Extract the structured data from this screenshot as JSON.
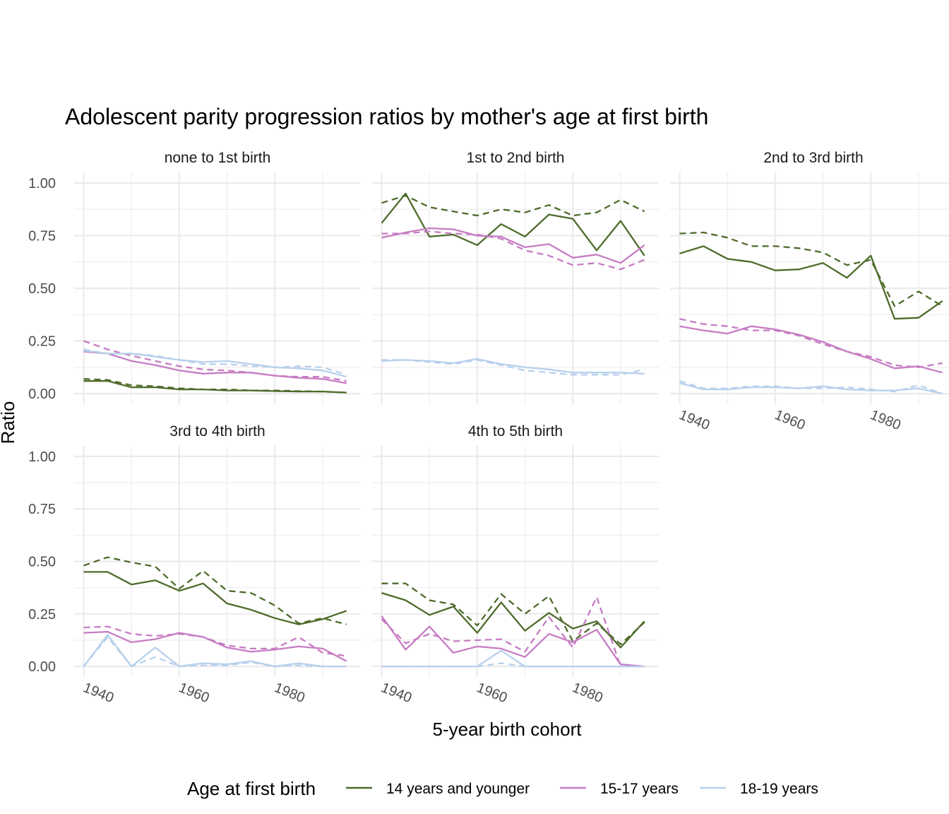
{
  "chart_data": {
    "type": "line",
    "title": "Adolescent parity progression ratios by mother's age at first birth",
    "xlabel": "5-year birth cohort",
    "ylabel": "Ratio",
    "xlim": [
      1938,
      1998
    ],
    "ylim": [
      -0.05,
      1.05
    ],
    "x_ticks": [
      "1940",
      "1960",
      "1980"
    ],
    "y_ticks": [
      "0.00",
      "0.25",
      "0.50",
      "0.75",
      "1.00"
    ],
    "legend": {
      "title": "Age at first birth",
      "position": "bottom",
      "entries": [
        "14 years and younger",
        "15-17 years",
        "18-19 years"
      ]
    },
    "colors": {
      "14 years and younger": "#4d6b2a",
      "15-17 years": "#c77cc4",
      "18-19 years": "#b8d0ec"
    },
    "x": [
      1940,
      1945,
      1950,
      1955,
      1960,
      1965,
      1970,
      1975,
      1980,
      1985,
      1990,
      1995
    ],
    "panels": [
      {
        "label": "none to 1st birth",
        "series": [
          {
            "name": "14 years and younger",
            "line": "solid",
            "values": [
              0.06,
              0.06,
              0.03,
              0.03,
              0.02,
              0.02,
              0.015,
              0.015,
              0.012,
              0.01,
              0.01,
              0.005
            ]
          },
          {
            "name": "14 years and younger",
            "line": "dashed",
            "values": [
              0.07,
              0.065,
              0.04,
              0.035,
              0.025,
              0.02,
              0.02,
              0.015,
              0.015,
              0.012,
              0.01,
              0.005
            ]
          },
          {
            "name": "15-17 years",
            "line": "solid",
            "values": [
              0.2,
              0.19,
              0.155,
              0.135,
              0.11,
              0.095,
              0.1,
              0.1,
              0.085,
              0.075,
              0.07,
              0.05
            ]
          },
          {
            "name": "15-17 years",
            "line": "dashed",
            "values": [
              0.25,
              0.21,
              0.18,
              0.155,
              0.13,
              0.115,
              0.11,
              0.1,
              0.085,
              0.08,
              0.08,
              0.06
            ]
          },
          {
            "name": "18-19 years",
            "line": "solid",
            "values": [
              0.205,
              0.19,
              0.19,
              0.175,
              0.16,
              0.15,
              0.155,
              0.14,
              0.125,
              0.12,
              0.11,
              0.08
            ]
          },
          {
            "name": "18-19 years",
            "line": "dashed",
            "values": [
              0.21,
              0.19,
              0.19,
              0.18,
              0.16,
              0.14,
              0.14,
              0.13,
              0.125,
              0.13,
              0.125,
              0.09
            ]
          }
        ]
      },
      {
        "label": "1st to 2nd birth",
        "series": [
          {
            "name": "14 years and younger",
            "line": "solid",
            "values": [
              0.81,
              0.95,
              0.745,
              0.755,
              0.705,
              0.805,
              0.745,
              0.85,
              0.83,
              0.68,
              0.82,
              0.655
            ]
          },
          {
            "name": "14 years and younger",
            "line": "dashed",
            "values": [
              0.905,
              0.94,
              0.885,
              0.865,
              0.845,
              0.875,
              0.86,
              0.895,
              0.845,
              0.86,
              0.92,
              0.865
            ]
          },
          {
            "name": "15-17 years",
            "line": "solid",
            "values": [
              0.74,
              0.765,
              0.785,
              0.78,
              0.75,
              0.745,
              0.695,
              0.71,
              0.645,
              0.66,
              0.62,
              0.705
            ]
          },
          {
            "name": "15-17 years",
            "line": "dashed",
            "values": [
              0.76,
              0.76,
              0.77,
              0.76,
              0.755,
              0.735,
              0.68,
              0.655,
              0.61,
              0.62,
              0.59,
              0.635
            ]
          },
          {
            "name": "18-19 years",
            "line": "solid",
            "values": [
              0.155,
              0.16,
              0.155,
              0.145,
              0.165,
              0.14,
              0.125,
              0.115,
              0.1,
              0.1,
              0.1,
              0.095
            ]
          },
          {
            "name": "18-19 years",
            "line": "dashed",
            "values": [
              0.16,
              0.16,
              0.15,
              0.14,
              0.16,
              0.135,
              0.11,
              0.1,
              0.09,
              0.09,
              0.09,
              0.115
            ]
          }
        ]
      },
      {
        "label": "2nd to 3rd birth",
        "series": [
          {
            "name": "14 years and younger",
            "line": "solid",
            "values": [
              0.665,
              0.7,
              0.64,
              0.625,
              0.585,
              0.59,
              0.62,
              0.55,
              0.655,
              0.355,
              0.36,
              0.44
            ]
          },
          {
            "name": "14 years and younger",
            "line": "dashed",
            "values": [
              0.76,
              0.765,
              0.74,
              0.7,
              0.7,
              0.69,
              0.67,
              0.61,
              0.635,
              0.415,
              0.485,
              0.415
            ]
          },
          {
            "name": "15-17 years",
            "line": "solid",
            "values": [
              0.32,
              0.3,
              0.285,
              0.32,
              0.305,
              0.28,
              0.245,
              0.2,
              0.165,
              0.12,
              0.13,
              0.1
            ]
          },
          {
            "name": "15-17 years",
            "line": "dashed",
            "values": [
              0.355,
              0.33,
              0.32,
              0.3,
              0.3,
              0.275,
              0.235,
              0.2,
              0.175,
              0.135,
              0.125,
              0.145
            ]
          },
          {
            "name": "18-19 years",
            "line": "solid",
            "values": [
              0.05,
              0.02,
              0.02,
              0.03,
              0.03,
              0.025,
              0.035,
              0.02,
              0.015,
              0.015,
              0.025,
              0.0
            ]
          },
          {
            "name": "18-19 years",
            "line": "dashed",
            "values": [
              0.06,
              0.025,
              0.025,
              0.035,
              0.035,
              0.025,
              0.025,
              0.03,
              0.02,
              0.01,
              0.04,
              0.0
            ]
          }
        ]
      },
      {
        "label": "3rd to 4th birth",
        "series": [
          {
            "name": "14 years and younger",
            "line": "solid",
            "values": [
              0.45,
              0.45,
              0.39,
              0.41,
              0.36,
              0.395,
              0.3,
              0.27,
              0.23,
              0.2,
              0.225,
              0.265
            ]
          },
          {
            "name": "14 years and younger",
            "line": "dashed",
            "values": [
              0.48,
              0.52,
              0.495,
              0.475,
              0.37,
              0.455,
              0.36,
              0.35,
              0.29,
              0.205,
              0.23,
              0.2
            ]
          },
          {
            "name": "15-17 years",
            "line": "solid",
            "values": [
              0.16,
              0.165,
              0.115,
              0.13,
              0.16,
              0.14,
              0.09,
              0.07,
              0.08,
              0.095,
              0.085,
              0.025
            ]
          },
          {
            "name": "15-17 years",
            "line": "dashed",
            "values": [
              0.185,
              0.19,
              0.155,
              0.145,
              0.155,
              0.14,
              0.1,
              0.085,
              0.085,
              0.14,
              0.065,
              0.05
            ]
          },
          {
            "name": "18-19 years",
            "line": "solid",
            "values": [
              0.0,
              0.15,
              0.0,
              0.09,
              0.0,
              0.015,
              0.01,
              0.025,
              0.0,
              0.015,
              0.0,
              0.0
            ]
          },
          {
            "name": "18-19 years",
            "line": "dashed",
            "values": [
              0.0,
              0.14,
              0.0,
              0.045,
              0.0,
              0.005,
              0.005,
              0.02,
              0.0,
              0.005,
              0.0,
              0.0
            ]
          }
        ]
      },
      {
        "label": "4th to 5th birth",
        "series": [
          {
            "name": "14 years and younger",
            "line": "solid",
            "values": [
              0.35,
              0.315,
              0.245,
              0.285,
              0.16,
              0.305,
              0.17,
              0.255,
              0.18,
              0.215,
              0.09,
              0.215
            ]
          },
          {
            "name": "14 years and younger",
            "line": "dashed",
            "values": [
              0.395,
              0.395,
              0.315,
              0.295,
              0.195,
              0.345,
              0.25,
              0.335,
              0.12,
              0.205,
              0.105,
              0.21
            ]
          },
          {
            "name": "15-17 years",
            "line": "solid",
            "values": [
              0.24,
              0.08,
              0.19,
              0.065,
              0.095,
              0.085,
              0.045,
              0.155,
              0.115,
              0.175,
              0.01,
              0.0
            ]
          },
          {
            "name": "15-17 years",
            "line": "dashed",
            "values": [
              0.225,
              0.11,
              0.155,
              0.12,
              0.125,
              0.13,
              0.07,
              0.235,
              0.09,
              0.33,
              0.0,
              0.0
            ]
          },
          {
            "name": "18-19 years",
            "line": "solid",
            "values": [
              0.0,
              0.0,
              0.0,
              0.0,
              0.0,
              0.075,
              0.0,
              0.0,
              0.0,
              0.0,
              0.0,
              0.0
            ]
          },
          {
            "name": "18-19 years",
            "line": "dashed",
            "values": [
              0.0,
              0.0,
              0.0,
              0.0,
              0.0,
              0.015,
              0.0,
              0.0,
              0.0,
              0.0,
              0.0,
              0.0
            ]
          }
        ]
      }
    ]
  }
}
